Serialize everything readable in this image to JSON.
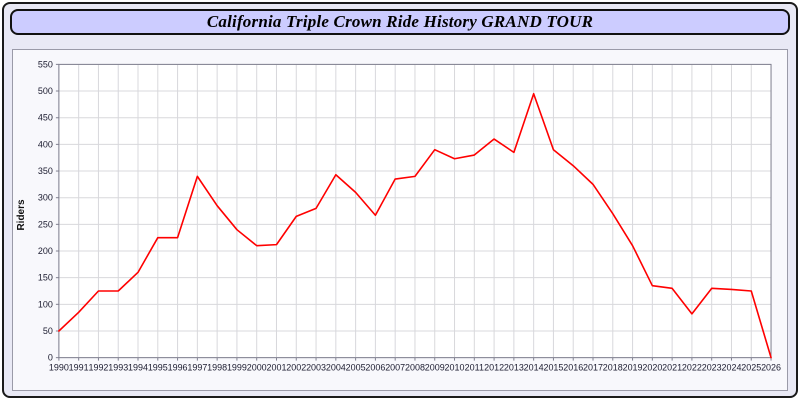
{
  "title": "California Triple Crown Ride History GRAND TOUR",
  "colors": {
    "title_bar_bg": "#ccccff",
    "page_bg": "#e9e9f5",
    "plot_bg": "#ffffff",
    "grid": "#d8d8dc",
    "axis": "#808090",
    "tick_text": "#1c1c30",
    "line": "#ff0000"
  },
  "chart_data": {
    "type": "line",
    "title": "California Triple Crown Ride History GRAND TOUR",
    "xlabel": "",
    "ylabel": "Riders",
    "ylim": [
      0,
      550
    ],
    "ytick_step": 50,
    "grid": true,
    "legend": false,
    "x": [
      1990,
      1991,
      1992,
      1993,
      1994,
      1995,
      1996,
      1997,
      1998,
      1999,
      2000,
      2001,
      2002,
      2003,
      2004,
      2005,
      2006,
      2007,
      2008,
      2009,
      2010,
      2011,
      2012,
      2013,
      2014,
      2015,
      2016,
      2017,
      2018,
      2019,
      2020,
      2021,
      2022,
      2023,
      2024,
      2025,
      2026
    ],
    "series": [
      {
        "name": "Riders",
        "color": "#ff0000",
        "values": [
          50,
          85,
          125,
          125,
          160,
          225,
          225,
          340,
          285,
          240,
          210,
          212,
          265,
          280,
          343,
          310,
          267,
          335,
          340,
          390,
          373,
          380,
          410,
          385,
          495,
          390,
          360,
          325,
          270,
          210,
          135,
          130,
          82,
          130,
          128,
          125,
          0
        ]
      }
    ]
  }
}
